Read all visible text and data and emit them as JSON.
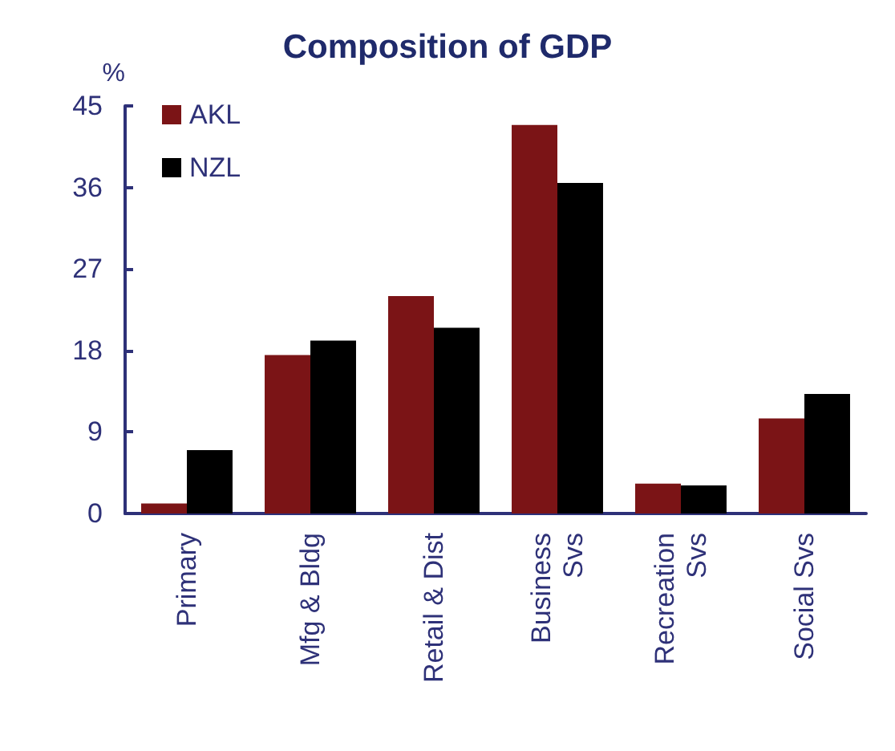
{
  "chart_data": {
    "type": "bar",
    "title": "Composition of GDP",
    "ylabel": "%",
    "categories": [
      "Primary",
      "Mfg & Bldg",
      "Retail & Dist",
      "Business\nSvs",
      "Recreation\nSvs",
      "Social Svs"
    ],
    "series": [
      {
        "name": "AKL",
        "color": "#7b1416",
        "values": [
          1.1,
          17.5,
          24.0,
          42.9,
          3.3,
          10.5
        ]
      },
      {
        "name": "NZL",
        "color": "#000000",
        "values": [
          7.0,
          19.1,
          20.5,
          36.5,
          3.1,
          13.2
        ]
      }
    ],
    "ylim": [
      0,
      45
    ],
    "yticks": [
      0,
      9,
      18,
      27,
      36,
      45
    ],
    "grid": false,
    "legend": "top left"
  }
}
